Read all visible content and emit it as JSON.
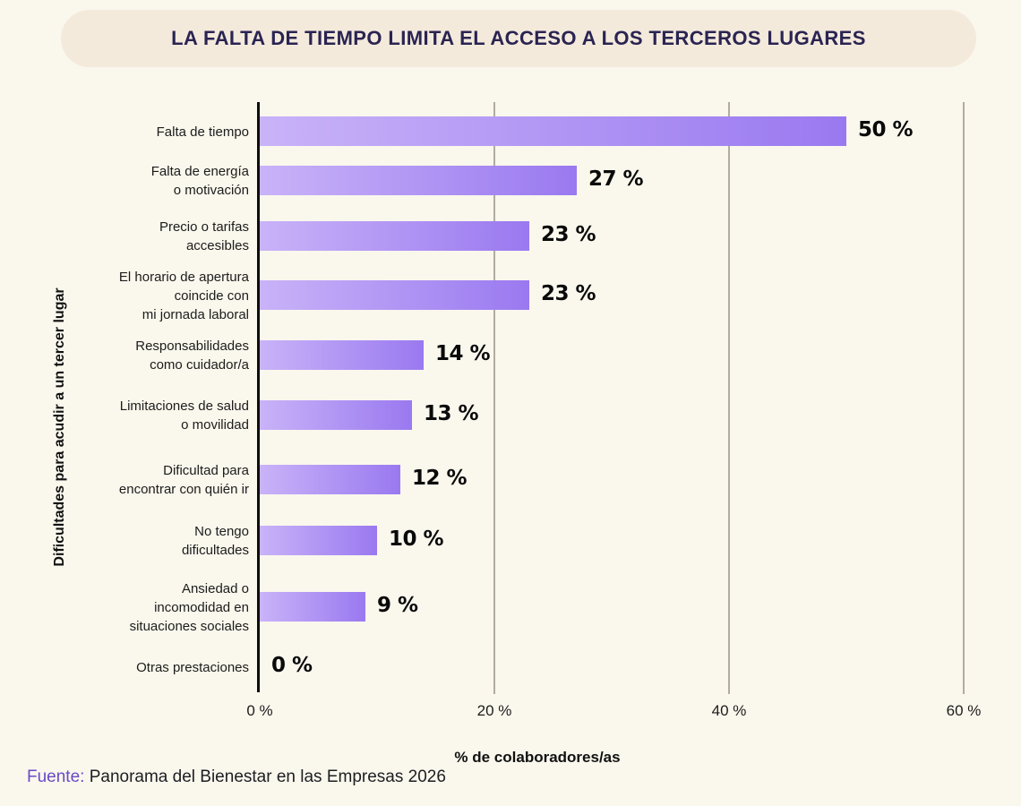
{
  "title": "LA FALTA DE TIEMPO LIMITA EL ACCESO A LOS TERCEROS LUGARES",
  "chart_data": {
    "type": "bar",
    "orientation": "horizontal",
    "title": "LA FALTA DE TIEMPO LIMITA EL ACCESO A LOS TERCEROS LUGARES",
    "categories": [
      "Falta de tiempo",
      "Falta de energía o motivación",
      "Precio o tarifas accesibles",
      "El horario de apertura coincide con mi jornada laboral",
      "Responsabilidades como cuidador/a",
      "Limitaciones de salud o movilidad",
      "Dificultad para encontrar con quién ir",
      "No tengo dificultades",
      "Ansiedad o incomodidad en situaciones sociales",
      "Otras prestaciones"
    ],
    "categories_display": [
      "Falta de tiempo",
      "Falta de energía\no motivación",
      "Precio o tarifas\naccesibles",
      "El horario de apertura\ncoincide con\nmi jornada laboral",
      "Responsabilidades\ncomo cuidador/a",
      "Limitaciones de salud\no movilidad",
      "Dificultad para\nencontrar con quién ir",
      "No tengo\ndificultades",
      "Ansiedad o\nincomodidad en\nsituaciones sociales",
      "Otras prestaciones"
    ],
    "values": [
      50,
      27,
      23,
      23,
      14,
      13,
      12,
      10,
      9,
      0
    ],
    "value_labels": [
      "50 %",
      "27 %",
      "23 %",
      "23 %",
      "14 %",
      "13 %",
      "12 %",
      "10 %",
      "9 %",
      "0 %"
    ],
    "ylabel": "Dificultades para acudir a un tercer lugar",
    "xlabel": "% de colaboradores/as",
    "x_ticks": [
      "0 %",
      "20 %",
      "40 %",
      "60 %"
    ],
    "x_tick_values": [
      0,
      20,
      40,
      60
    ],
    "xlim": [
      0,
      62
    ],
    "grid": true,
    "legend": false,
    "bar_gradient": [
      "#C9B3F8",
      "#9A79F0"
    ],
    "axis_color": "#0D0D0D",
    "gridline_color": "#B2ACA0"
  },
  "footer": {
    "source_label": "Fuente:",
    "source_text": " Panorama del Bienestar en las Empresas 2026"
  },
  "colors": {
    "background": "#FAF7ED",
    "title_pill": "#F4EADC",
    "title_text": "#2A2452",
    "source_accent": "#6A4BC6"
  }
}
